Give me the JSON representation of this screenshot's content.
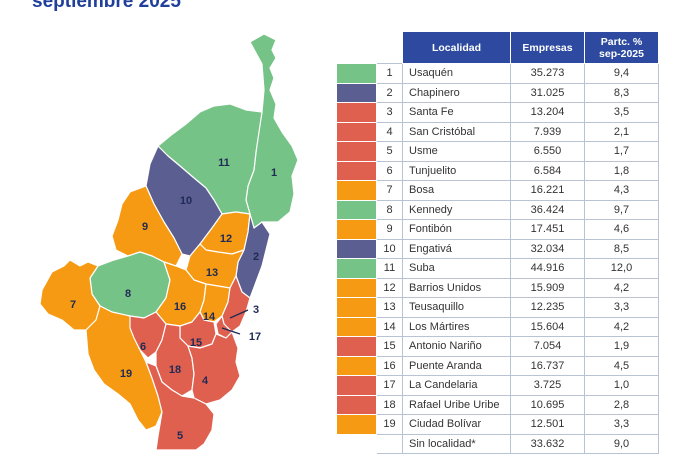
{
  "header": {
    "title": "septiembre 2025"
  },
  "colors": {
    "green": "#76c387",
    "navy": "#5b5e91",
    "orange": "#f59a12",
    "red": "#e0604f",
    "header_bg": "#2d4aa0",
    "title": "#1f3f9b"
  },
  "table": {
    "headers": {
      "localidad": "Localidad",
      "empresas": "Empresas",
      "particip": "Partc. % sep-2025"
    },
    "rows": [
      {
        "num": "1",
        "name": "Usaquén",
        "empresas": "35.273",
        "pct": "9,4",
        "color": "green"
      },
      {
        "num": "2",
        "name": "Chapinero",
        "empresas": "31.025",
        "pct": "8,3",
        "color": "navy"
      },
      {
        "num": "3",
        "name": "Santa Fe",
        "empresas": "13.204",
        "pct": "3,5",
        "color": "red"
      },
      {
        "num": "4",
        "name": "San Cristóbal",
        "empresas": "7.939",
        "pct": "2,1",
        "color": "red"
      },
      {
        "num": "5",
        "name": "Usme",
        "empresas": "6.550",
        "pct": "1,7",
        "color": "red"
      },
      {
        "num": "6",
        "name": "Tunjuelito",
        "empresas": "6.584",
        "pct": "1,8",
        "color": "red"
      },
      {
        "num": "7",
        "name": "Bosa",
        "empresas": "16.221",
        "pct": "4,3",
        "color": "orange"
      },
      {
        "num": "8",
        "name": "Kennedy",
        "empresas": "36.424",
        "pct": "9,7",
        "color": "green"
      },
      {
        "num": "9",
        "name": "Fontibón",
        "empresas": "17.451",
        "pct": "4,6",
        "color": "orange"
      },
      {
        "num": "10",
        "name": "Engativá",
        "empresas": "32.034",
        "pct": "8,5",
        "color": "navy"
      },
      {
        "num": "11",
        "name": "Suba",
        "empresas": "44.916",
        "pct": "12,0",
        "color": "green"
      },
      {
        "num": "12",
        "name": "Barrios Unidos",
        "empresas": "15.909",
        "pct": "4,2",
        "color": "orange"
      },
      {
        "num": "13",
        "name": "Teusaquillo",
        "empresas": "12.235",
        "pct": "3,3",
        "color": "orange"
      },
      {
        "num": "14",
        "name": "Los Mártires",
        "empresas": "15.604",
        "pct": "4,2",
        "color": "orange"
      },
      {
        "num": "15",
        "name": "Antonio Nariño",
        "empresas": "7.054",
        "pct": "1,9",
        "color": "red"
      },
      {
        "num": "16",
        "name": "Puente Aranda",
        "empresas": "16.737",
        "pct": "4,5",
        "color": "orange"
      },
      {
        "num": "17",
        "name": "La Candelaria",
        "empresas": "3.725",
        "pct": "1,0",
        "color": "red"
      },
      {
        "num": "18",
        "name": "Rafael Uribe Uribe",
        "empresas": "10.695",
        "pct": "2,8",
        "color": "red"
      },
      {
        "num": "19",
        "name": "Ciudad Bolívar",
        "empresas": "12.501",
        "pct": "3,3",
        "color": "orange"
      },
      {
        "num": "",
        "name": "Sin localidad*",
        "empresas": "33.632",
        "pct": "9,0",
        "color": "none"
      }
    ]
  },
  "map": {
    "labels": {
      "l1": "1",
      "l2": "2",
      "l3": "3",
      "l4": "4",
      "l5": "5",
      "l6": "6",
      "l7": "7",
      "l8": "8",
      "l9": "9",
      "l10": "10",
      "l11": "11",
      "l12": "12",
      "l13": "13",
      "l14": "14",
      "l15": "15",
      "l16": "16",
      "l17": "17",
      "l18": "18",
      "l19": "19"
    }
  }
}
